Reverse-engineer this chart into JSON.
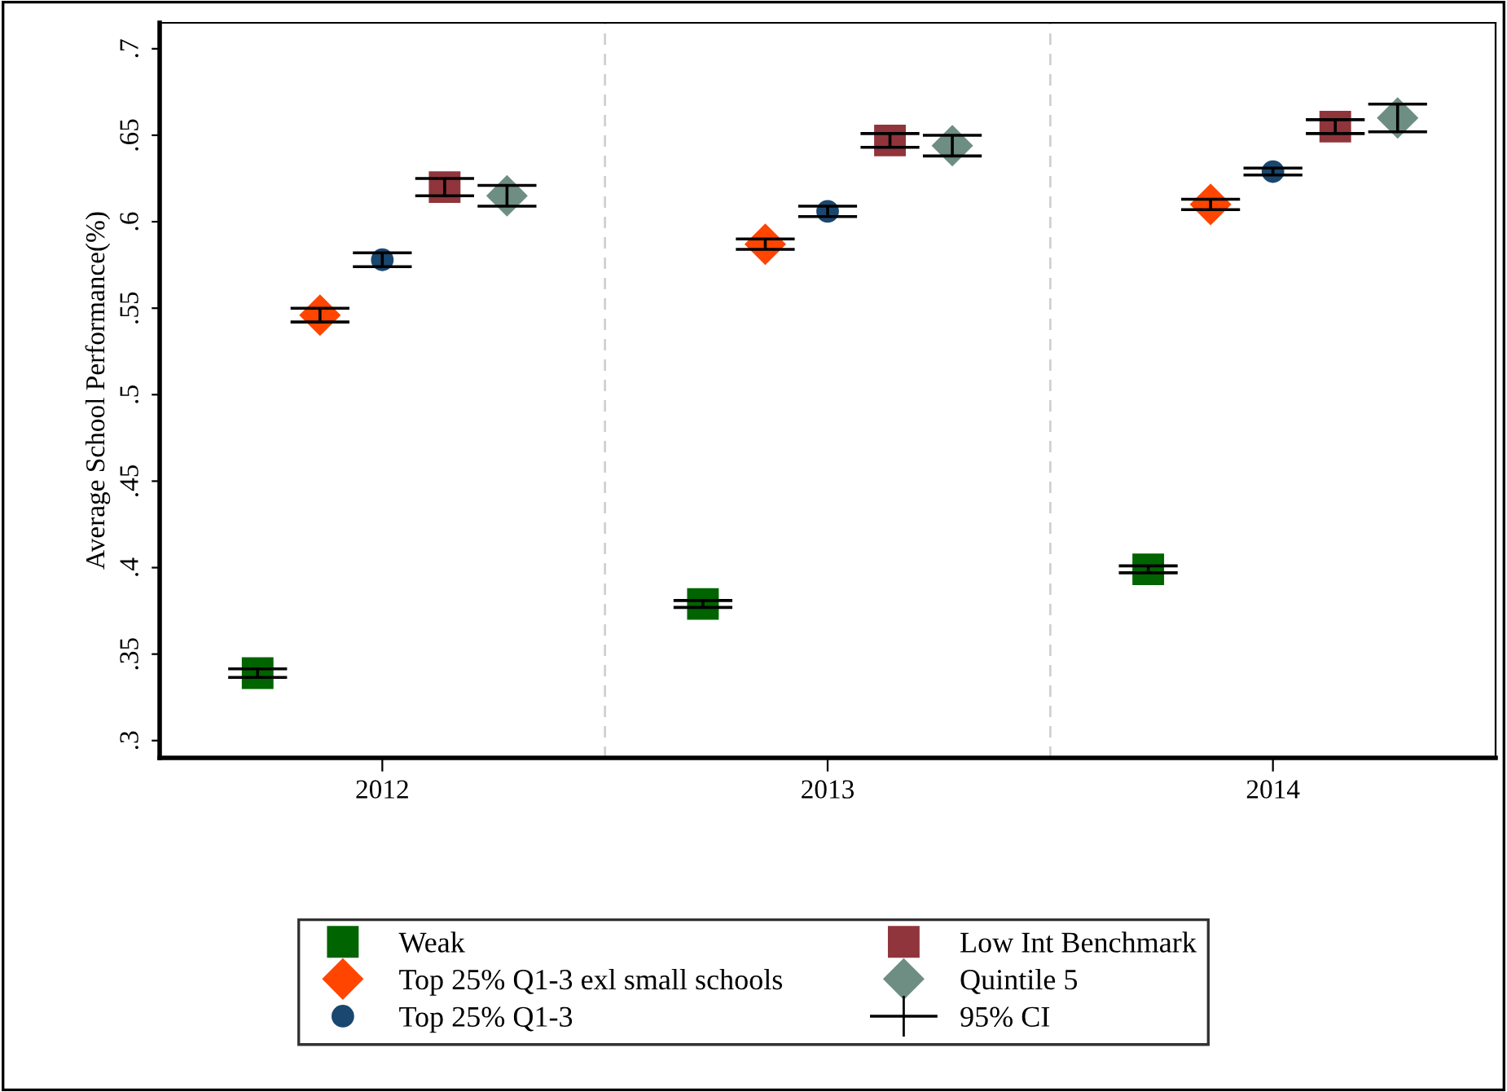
{
  "chart_data": {
    "type": "scatter",
    "ylabel": "Average School Performance(%)",
    "xlim": [
      2011.5,
      2014.5
    ],
    "xticks": [
      2012,
      2013,
      2014
    ],
    "ylim": [
      0.29,
      0.715
    ],
    "yticks": [
      {
        "value": 0.3,
        "label": ".3"
      },
      {
        "value": 0.35,
        "label": ".35"
      },
      {
        "value": 0.4,
        "label": ".4"
      },
      {
        "value": 0.45,
        "label": ".45"
      },
      {
        "value": 0.5,
        "label": ".5"
      },
      {
        "value": 0.55,
        "label": ".55"
      },
      {
        "value": 0.6,
        "label": ".6"
      },
      {
        "value": 0.65,
        "label": ".65"
      },
      {
        "value": 0.7,
        "label": ".7"
      }
    ],
    "grid": false,
    "legend": "bottom",
    "ref_lines": [
      {
        "axis": "x",
        "value": 2012.5,
        "color": "#d0d0d0",
        "line_style": "dashed"
      },
      {
        "axis": "x",
        "value": 2013.5,
        "color": "#d0d0d0",
        "line_style": "dashed"
      }
    ],
    "annotations": [
      "95% CI"
    ],
    "series": [
      {
        "name": "Weak",
        "color": "#006400",
        "marker": "square",
        "x": [
          2011.72,
          2012.72,
          2013.72
        ],
        "values": [
          0.339,
          0.379,
          0.399
        ],
        "errors": [
          0.0025,
          0.002,
          0.002
        ]
      },
      {
        "name": "Top 25% Q1-3 exl small schools",
        "color": "#ff4500",
        "marker": "diamond",
        "x": [
          2011.86,
          2012.86,
          2013.86
        ],
        "values": [
          0.546,
          0.587,
          0.61
        ],
        "errors": [
          0.004,
          0.003,
          0.003
        ]
      },
      {
        "name": "Top 25% Q1-3",
        "color": "#1a476f",
        "marker": "circle",
        "x": [
          2012,
          2013,
          2014
        ],
        "values": [
          0.578,
          0.606,
          0.629
        ],
        "errors": [
          0.004,
          0.003,
          0.002
        ]
      },
      {
        "name": "Low Int Benchmark",
        "color": "#90353b",
        "marker": "square",
        "x": [
          2012.14,
          2013.14,
          2014.14
        ],
        "values": [
          0.62,
          0.647,
          0.655
        ],
        "errors": [
          0.005,
          0.004,
          0.004
        ]
      },
      {
        "name": "Quintile 5",
        "color": "#6e8e84",
        "marker": "diamond",
        "x": [
          2012.28,
          2013.28,
          2014.28
        ],
        "values": [
          0.615,
          0.644,
          0.66
        ],
        "errors": [
          0.006,
          0.006,
          0.008
        ]
      }
    ]
  }
}
